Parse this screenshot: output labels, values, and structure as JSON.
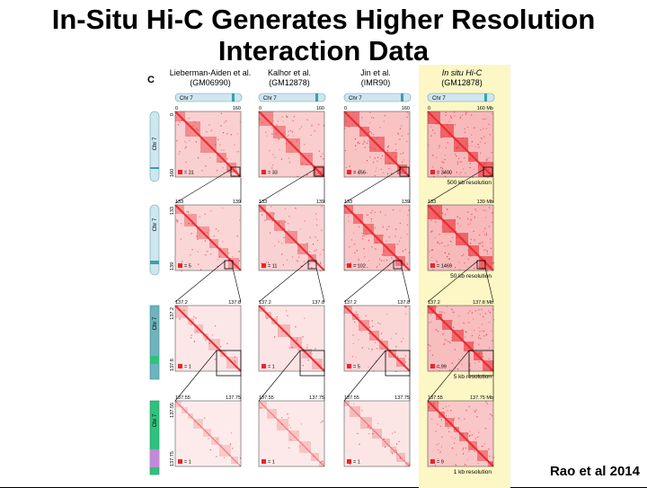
{
  "slide": {
    "title_line1": "In-Situ Hi-C Generates Higher Resolution",
    "title_line2": "Interaction Data",
    "citation": "Rao et al 2014"
  },
  "figure": {
    "panel_letter": "C",
    "columns": [
      {
        "name": "Lieberman-Aiden et al.",
        "sample": "(GM06990)"
      },
      {
        "name": "Kalhor et al.",
        "sample": "(GM12878)"
      },
      {
        "name": "Jin et al.",
        "sample": "(IMR90)"
      },
      {
        "name": "In situ Hi-C",
        "sample": "(GM12878)"
      }
    ],
    "chrom_label": "Chr 7",
    "rows": [
      {
        "start": "0",
        "end": "160",
        "end_suffix": "160 Mb",
        "side_start": "0",
        "side_end": "160",
        "legend": [
          "= 21",
          "= 33",
          "= 456",
          "= 3400"
        ],
        "resolution": "500 kb resolution"
      },
      {
        "start": "133",
        "end": "139",
        "end_suffix": "139 Mb",
        "side_start": "133",
        "side_end": "139",
        "legend": [
          "= 5",
          "= 11",
          "= 102",
          "= 1469"
        ],
        "resolution": "50 kb resolution"
      },
      {
        "start": "137.2",
        "end": "137.8",
        "end_suffix": "137.8 Mb",
        "side_start": "137.2",
        "side_end": "137.8",
        "legend": [
          "= 1",
          "= 1",
          "= 5",
          "= 99"
        ],
        "resolution": "5 kb resolution"
      },
      {
        "start": "137.55",
        "end": "137.75",
        "end_suffix": "137.75 Mb",
        "side_start": "137.55",
        "side_end": "137.75",
        "legend": [
          "= 1",
          "= 1",
          "= 1",
          "= 9"
        ],
        "resolution": "1 kb resolution"
      }
    ],
    "colors": {
      "heat": "#e8262b",
      "highlight": "#fdf7c5",
      "ideogram": "#cfe6ee",
      "teal": "#3aa0a8",
      "green": "#2ec27e",
      "purple": "#c18ad6"
    }
  }
}
